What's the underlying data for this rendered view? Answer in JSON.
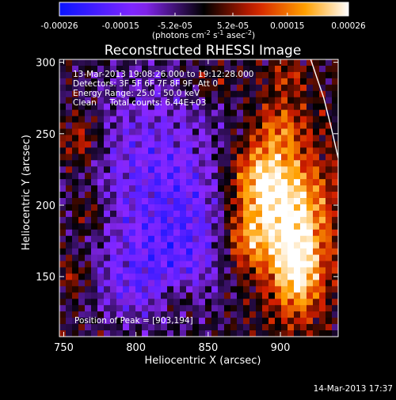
{
  "chart_data": {
    "type": "heatmap",
    "title": "Reconstructed RHESSI Image",
    "xlabel": "Heliocentric X (arcsec)",
    "ylabel": "Heliocentric Y (arcsec)",
    "xlim": [
      747,
      940
    ],
    "ylim": [
      108,
      302
    ],
    "x_ticks": [
      750,
      800,
      850,
      900
    ],
    "y_ticks": [
      150,
      200,
      250,
      300
    ],
    "grid": false,
    "colormap": "blue-purple-black-red-yellow-white",
    "colormap_stops": [
      "#0a14ff",
      "#8c28ff",
      "#000000",
      "#d21e00",
      "#ffa000",
      "#ffffff"
    ],
    "colorbar": {
      "range": [
        -0.00026,
        0.00026
      ],
      "tick_values": [
        -0.00026,
        -0.00015,
        -5.2e-05,
        5.2e-05,
        0.00015,
        0.00026
      ],
      "tick_labels": [
        "-0.00026",
        "-0.00015",
        "-5.2e-05",
        "5.2e-05",
        "0.00015",
        "0.00026"
      ],
      "unit_prefix": "(photons cm",
      "unit_exp1": "-2",
      "unit_mid": " s",
      "unit_exp2": "-1",
      "unit_mid2": " asec",
      "unit_exp3": "-2",
      "unit_suffix": ")"
    },
    "annotations": {
      "time_range": "13-Mar-2013 19:08:26.000 to 19:12:28.000",
      "detectors": "Detectors: 3F 5F 6F 7F 8F 9F, Att 0",
      "energy_range": "Energy Range: 25.0 - 50.0 keV",
      "clean_counts": "Clean     Total counts: 6.44E+03",
      "peak_position": "Position of Peak = [903,194]"
    },
    "peak": [
      903,
      194
    ],
    "limb_curve": [
      [
        921,
        302
      ],
      [
        925,
        290
      ],
      [
        930,
        275
      ],
      [
        935,
        255
      ],
      [
        940,
        233
      ]
    ],
    "footer_timestamp": "14-Mar-2013 17:37"
  }
}
